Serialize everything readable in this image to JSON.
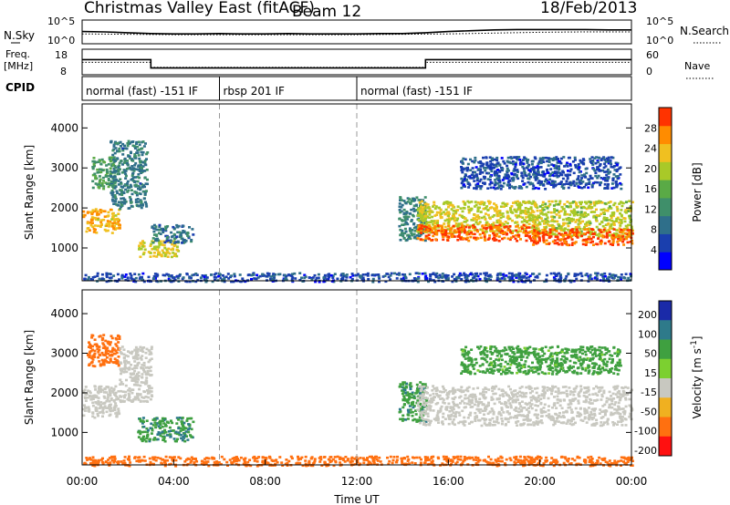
{
  "header": {
    "title": "Christmas Valley East (fitACF)",
    "beam": "Beam 12",
    "date": "18/Feb/2013"
  },
  "chart_data": [
    {
      "type": "line",
      "panel": "noise",
      "left_label": "N.Sky",
      "right_label": "N.Search",
      "left_ticks": [
        "10^5",
        "10^0"
      ],
      "right_ticks": [
        "10^5",
        "10^0"
      ],
      "scale": "log",
      "series": [
        {
          "label": "N.Sky",
          "style": "solid",
          "x": [
            0,
            1,
            2,
            3,
            4,
            5,
            6,
            7,
            8,
            9,
            10,
            11,
            12,
            13,
            14,
            15,
            16,
            17,
            18,
            19,
            20,
            21,
            22,
            23,
            24
          ],
          "y_log": [
            2.6,
            2.5,
            2.3,
            2.1,
            2.0,
            2.0,
            2.1,
            2.0,
            2.0,
            2.1,
            2.0,
            2.0,
            2.0,
            2.1,
            2.1,
            2.3,
            2.6,
            2.8,
            3.0,
            3.1,
            3.1,
            3.1,
            3.1,
            3.0,
            3.0
          ]
        },
        {
          "label": "N.Search",
          "style": "dotted",
          "x": [
            0,
            2,
            4,
            6,
            8,
            10,
            12,
            14,
            16,
            18,
            20,
            22,
            24
          ],
          "y_log": [
            2.0,
            1.9,
            1.8,
            1.8,
            1.8,
            1.8,
            1.8,
            1.9,
            2.0,
            2.2,
            2.4,
            2.5,
            2.5
          ]
        }
      ]
    },
    {
      "type": "line",
      "panel": "frequency",
      "left_label": [
        "Freq.",
        "[MHz]"
      ],
      "right_label": "Nave",
      "left_ticks": [
        "18",
        "8"
      ],
      "right_ticks": [
        "60",
        "0"
      ],
      "series": [
        {
          "label": "Freq. [MHz]",
          "style": "solid",
          "x": [
            0,
            3,
            3,
            15,
            15,
            24
          ],
          "y": [
            14.2,
            14.2,
            10.0,
            10.0,
            14.2,
            14.2
          ]
        },
        {
          "label": "Nave",
          "style": "dotted",
          "x": [
            0,
            3,
            3,
            15,
            15,
            24
          ],
          "y": [
            29,
            29,
            14,
            14,
            29,
            29
          ]
        }
      ]
    },
    {
      "type": "table",
      "panel": "cpid",
      "label": "CPID",
      "segments": [
        {
          "start": 0,
          "end": 6,
          "text": "normal (fast) -151 IF"
        },
        {
          "start": 6,
          "end": 12,
          "text": "rbsp 201 IF"
        },
        {
          "start": 12,
          "end": 24,
          "text": "normal (fast) -151 IF"
        }
      ]
    },
    {
      "type": "heatmap",
      "panel": "power",
      "ylabel": "Slant Range [km]",
      "yticks": [
        1000,
        2000,
        3000,
        4000
      ],
      "ylim": [
        180,
        4600
      ],
      "xlim": [
        0,
        24
      ],
      "colorbar": {
        "label": "Power [dB]",
        "ticks": [
          4,
          8,
          12,
          16,
          20,
          24,
          28
        ],
        "range": [
          0,
          32
        ]
      },
      "regions": [
        {
          "t": [
            0.0,
            1.6
          ],
          "r": [
            1400,
            2000
          ],
          "value": 24
        },
        {
          "t": [
            0.4,
            1.4
          ],
          "r": [
            2500,
            3300
          ],
          "value": 14
        },
        {
          "t": [
            1.2,
            2.8
          ],
          "r": [
            2000,
            3700
          ],
          "value": 10
        },
        {
          "t": [
            2.4,
            4.2
          ],
          "r": [
            800,
            1200
          ],
          "value": 22
        },
        {
          "t": [
            3.0,
            4.8
          ],
          "r": [
            1150,
            1600
          ],
          "value": 9
        },
        {
          "t": [
            0.0,
            24.0
          ],
          "r": [
            180,
            400
          ],
          "value": 6
        },
        {
          "t": [
            13.8,
            15.0
          ],
          "r": [
            1200,
            2300
          ],
          "value": 11
        },
        {
          "t": [
            14.6,
            19.8
          ],
          "r": [
            1400,
            2200
          ],
          "value": 21
        },
        {
          "t": [
            14.6,
            19.8
          ],
          "r": [
            1200,
            1600
          ],
          "value": 29
        },
        {
          "t": [
            19.6,
            24.0
          ],
          "r": [
            1300,
            2200
          ],
          "value": 20
        },
        {
          "t": [
            19.6,
            24.0
          ],
          "r": [
            1100,
            1500
          ],
          "value": 29
        },
        {
          "t": [
            16.5,
            23.5
          ],
          "r": [
            2500,
            3300
          ],
          "value": 6
        }
      ]
    },
    {
      "type": "heatmap",
      "panel": "velocity",
      "ylabel": "Slant Range [km]",
      "yticks": [
        1000,
        2000,
        3000,
        4000
      ],
      "ylim": [
        180,
        4600
      ],
      "xlim": [
        0,
        24
      ],
      "xlabel": "Time UT",
      "xticks": [
        "00:00",
        "04:00",
        "08:00",
        "12:00",
        "16:00",
        "20:00",
        "00:00"
      ],
      "colorbar": {
        "label": "Velocity [m s^-1]",
        "ticks": [
          200,
          100,
          50,
          15,
          -15,
          -50,
          -100,
          -200
        ]
      },
      "regions": [
        {
          "t": [
            0.0,
            1.6
          ],
          "r": [
            1400,
            2200
          ],
          "value": -5
        },
        {
          "t": [
            0.2,
            1.6
          ],
          "r": [
            2700,
            3500
          ],
          "value": -75
        },
        {
          "t": [
            1.6,
            3.0
          ],
          "r": [
            1800,
            3200
          ],
          "value": -5
        },
        {
          "t": [
            2.4,
            4.8
          ],
          "r": [
            800,
            1400
          ],
          "value": 70
        },
        {
          "t": [
            0.0,
            24.0
          ],
          "r": [
            180,
            420
          ],
          "value": -60
        },
        {
          "t": [
            13.8,
            15.0
          ],
          "r": [
            1300,
            2300
          ],
          "value": 70
        },
        {
          "t": [
            14.6,
            24.0
          ],
          "r": [
            1200,
            2200
          ],
          "value": 0
        },
        {
          "t": [
            16.5,
            23.5
          ],
          "r": [
            2500,
            3200
          ],
          "value": 40
        }
      ]
    }
  ]
}
